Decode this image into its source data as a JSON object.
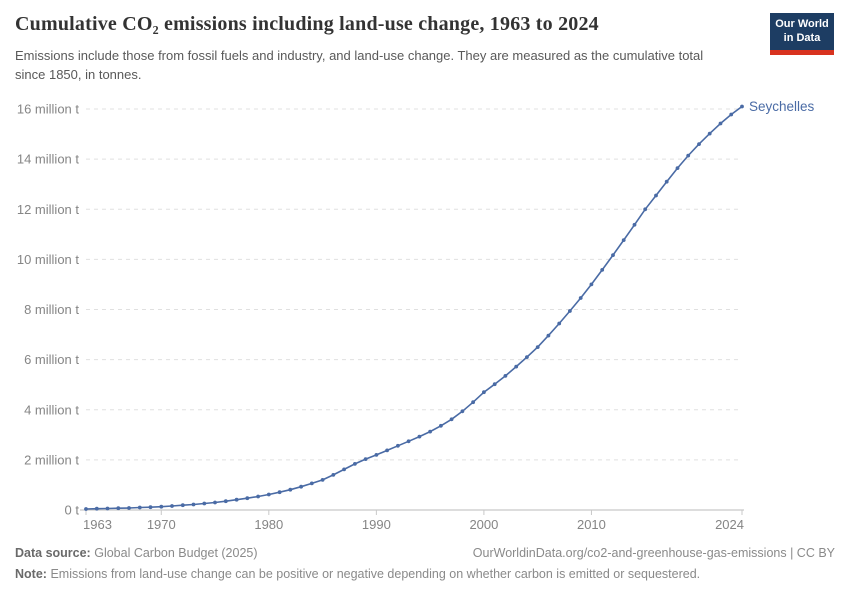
{
  "header": {
    "title": "Cumulative CO₂ emissions including land-use change, 1963 to 2024",
    "subtitle": "Emissions include those from fossil fuels and industry, and land-use change. They are measured as the cumulative total since 1850, in tonnes.",
    "logo": {
      "line1": "Our World",
      "line2": "in Data"
    }
  },
  "chart_data": {
    "type": "line",
    "title": "Cumulative CO₂ emissions including land-use change, 1963 to 2024",
    "unit": "million t",
    "xlabel": "",
    "ylabel": "",
    "xlim": [
      1963,
      2024
    ],
    "ylim": [
      0,
      16.5
    ],
    "grid": "horizontal-dashed",
    "legend": "end-of-line-label",
    "x_ticks": [
      1963,
      1970,
      1980,
      1990,
      2000,
      2010,
      2024
    ],
    "y_ticks": [
      {
        "value": 0,
        "label": "0 t"
      },
      {
        "value": 2,
        "label": "2 million t"
      },
      {
        "value": 4,
        "label": "4 million t"
      },
      {
        "value": 6,
        "label": "6 million t"
      },
      {
        "value": 8,
        "label": "8 million t"
      },
      {
        "value": 10,
        "label": "10 million t"
      },
      {
        "value": 12,
        "label": "12 million t"
      },
      {
        "value": 14,
        "label": "14 million t"
      },
      {
        "value": 16,
        "label": "16 million t"
      }
    ],
    "x": [
      1963,
      1964,
      1965,
      1966,
      1967,
      1968,
      1969,
      1970,
      1971,
      1972,
      1973,
      1974,
      1975,
      1976,
      1977,
      1978,
      1979,
      1980,
      1981,
      1982,
      1983,
      1984,
      1985,
      1986,
      1987,
      1988,
      1989,
      1990,
      1991,
      1992,
      1993,
      1994,
      1995,
      1996,
      1997,
      1998,
      1999,
      2000,
      2001,
      2002,
      2003,
      2004,
      2005,
      2006,
      2007,
      2008,
      2009,
      2010,
      2011,
      2012,
      2013,
      2014,
      2015,
      2016,
      2017,
      2018,
      2019,
      2020,
      2021,
      2022,
      2023,
      2024
    ],
    "series": [
      {
        "name": "Seychelles",
        "color": "#4a6ba5",
        "values": [
          0.04,
          0.05,
          0.06,
          0.07,
          0.08,
          0.1,
          0.11,
          0.13,
          0.16,
          0.19,
          0.22,
          0.26,
          0.3,
          0.35,
          0.41,
          0.47,
          0.54,
          0.62,
          0.71,
          0.81,
          0.93,
          1.06,
          1.2,
          1.4,
          1.62,
          1.84,
          2.03,
          2.2,
          2.38,
          2.56,
          2.74,
          2.93,
          3.13,
          3.36,
          3.62,
          3.94,
          4.3,
          4.7,
          5.02,
          5.35,
          5.72,
          6.1,
          6.5,
          6.96,
          7.44,
          7.94,
          8.46,
          9.0,
          9.58,
          10.17,
          10.77,
          11.38,
          12.0,
          12.55,
          13.1,
          13.64,
          14.14,
          14.6,
          15.02,
          15.42,
          15.78,
          16.1
        ]
      }
    ]
  },
  "footer": {
    "data_source_label": "Data source:",
    "data_source_value": "Global Carbon Budget (2025)",
    "link_text": "OurWorldinData.org/co2-and-greenhouse-gas-emissions | CC BY",
    "note_label": "Note:",
    "note_value": "Emissions from land-use change can be positive or negative depending on whether carbon is emitted or sequestered."
  },
  "colors": {
    "line": "#4a6ba5",
    "grid": "#e0e0e0",
    "axis": "#bbbbbb",
    "tick": "#c8c8c8",
    "tick_label": "#858585",
    "logo_bg": "#1d3d63",
    "logo_accent": "#d8321f"
  }
}
